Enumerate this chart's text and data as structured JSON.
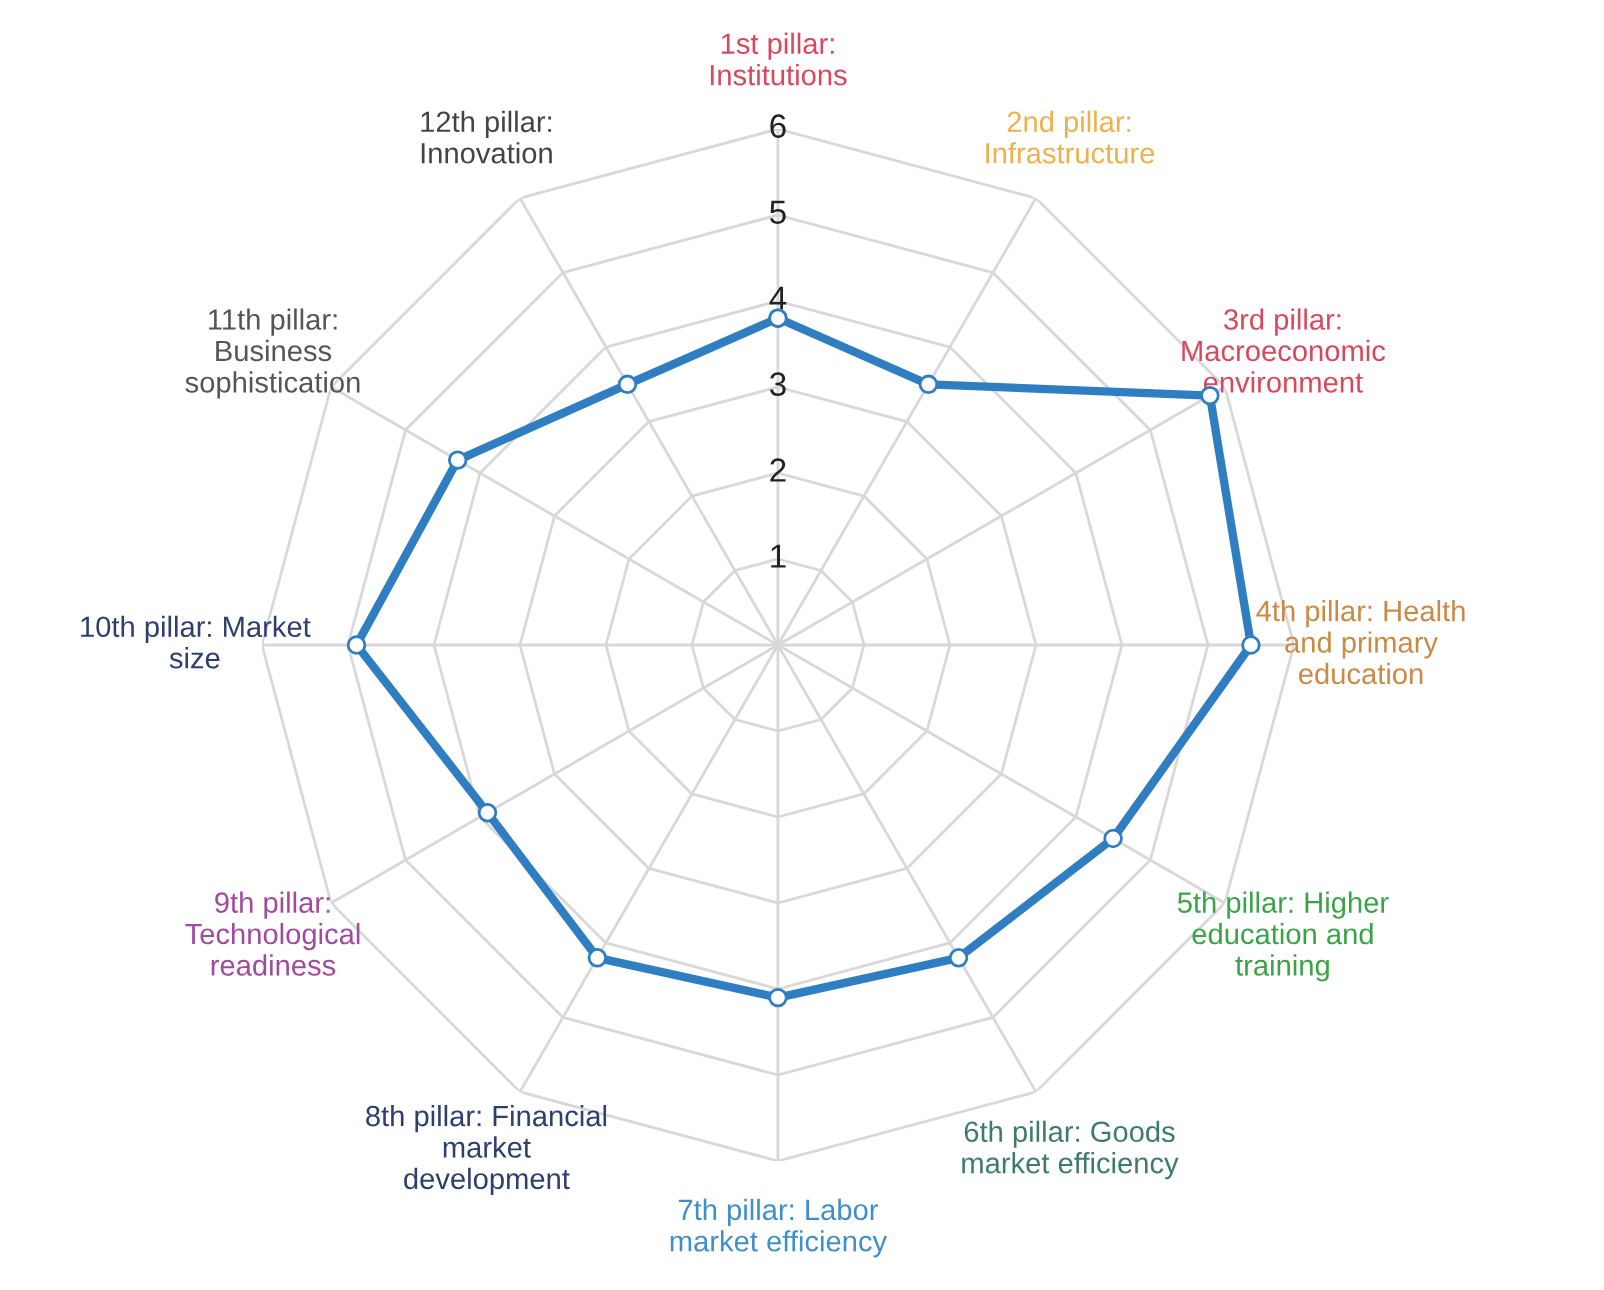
{
  "chart_data": {
    "type": "radar",
    "categories": [
      "1st pillar:\nInstitutions",
      "2nd pillar:\nInfrastructure",
      "3rd pillar:\nMacroeconomic\nenvironment",
      "4th pillar: Health\nand primary\neducation",
      "5th pillar: Higher\neducation and\ntraining",
      "6th pillar: Goods\nmarket efficiency",
      "7th pillar: Labor\nmarket efficiency",
      "8th pillar: Financial\nmarket\ndevelopment",
      "9th pillar:\nTechnological\nreadiness",
      "10th pillar: Market\nsize",
      "11th pillar:\nBusiness\nsophistication",
      "12th pillar:\nInnovation"
    ],
    "colors": [
      "#d9475e",
      "#eeb04a",
      "#d9475e",
      "#c98a45",
      "#3aa345",
      "#3f7a6e",
      "#3e8fc7",
      "#2e3f6e",
      "#a04a9c",
      "#2e3f6e",
      "#555555",
      "#444444"
    ],
    "series": [
      {
        "color": "#2f7ec1",
        "values": [
          3.8,
          3.5,
          5.8,
          5.5,
          4.5,
          4.2,
          4.1,
          4.2,
          3.9,
          4.9,
          4.3,
          3.5
        ]
      }
    ],
    "ylim": [
      0,
      6
    ],
    "yticks": [
      1,
      2,
      3,
      4,
      5,
      6
    ],
    "grid": true,
    "marker": "circle",
    "line_style": "solid"
  }
}
